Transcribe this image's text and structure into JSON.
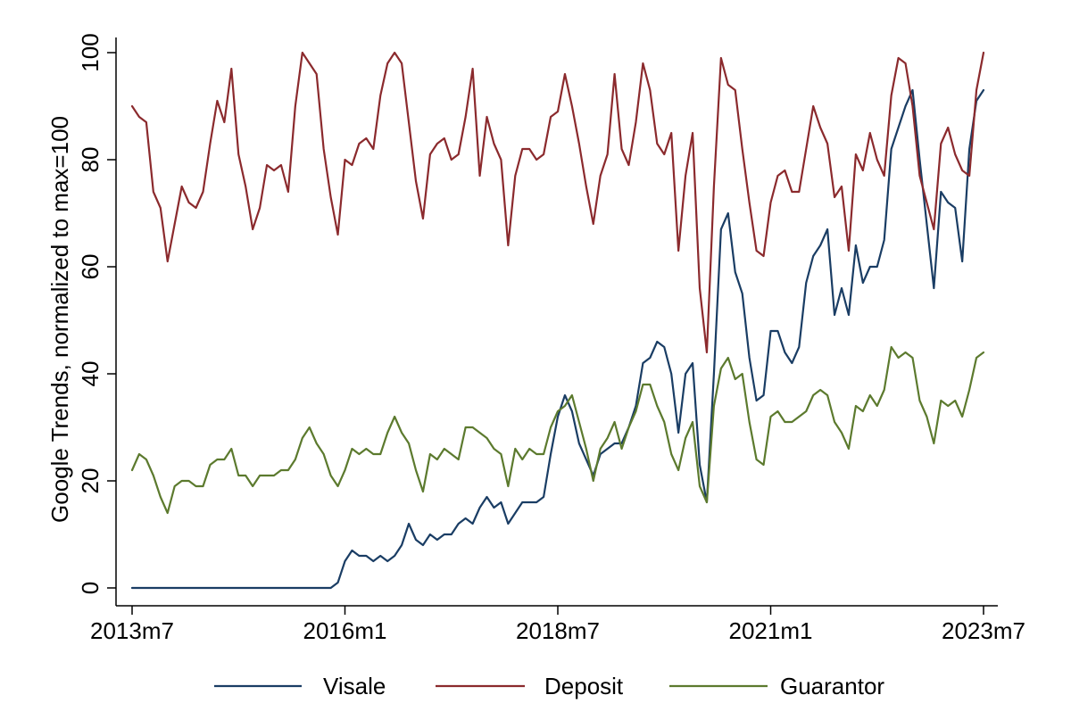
{
  "chart_data": {
    "type": "line",
    "ylabel": "Google Trends, normalized to max=100",
    "xlabel": "",
    "x_ticks": [
      "2013m7",
      "2016m1",
      "2018m7",
      "2021m1",
      "2023m7"
    ],
    "y_ticks": [
      "0",
      "20",
      "40",
      "60",
      "80",
      "100"
    ],
    "x_range": [
      "2013m7",
      "2023m7"
    ],
    "ylim": [
      0,
      100
    ],
    "grid": false,
    "legend_position": "bottom",
    "x": [
      "2013m7",
      "2013m8",
      "2013m9",
      "2013m10",
      "2013m11",
      "2013m12",
      "2014m1",
      "2014m2",
      "2014m3",
      "2014m4",
      "2014m5",
      "2014m6",
      "2014m7",
      "2014m8",
      "2014m9",
      "2014m10",
      "2014m11",
      "2014m12",
      "2015m1",
      "2015m2",
      "2015m3",
      "2015m4",
      "2015m5",
      "2015m6",
      "2015m7",
      "2015m8",
      "2015m9",
      "2015m10",
      "2015m11",
      "2015m12",
      "2016m1",
      "2016m2",
      "2016m3",
      "2016m4",
      "2016m5",
      "2016m6",
      "2016m7",
      "2016m8",
      "2016m9",
      "2016m10",
      "2016m11",
      "2016m12",
      "2017m1",
      "2017m2",
      "2017m3",
      "2017m4",
      "2017m5",
      "2017m6",
      "2017m7",
      "2017m8",
      "2017m9",
      "2017m10",
      "2017m11",
      "2017m12",
      "2018m1",
      "2018m2",
      "2018m3",
      "2018m4",
      "2018m5",
      "2018m6",
      "2018m7",
      "2018m8",
      "2018m9",
      "2018m10",
      "2018m11",
      "2018m12",
      "2019m1",
      "2019m2",
      "2019m3",
      "2019m4",
      "2019m5",
      "2019m6",
      "2019m7",
      "2019m8",
      "2019m9",
      "2019m10",
      "2019m11",
      "2019m12",
      "2020m1",
      "2020m2",
      "2020m3",
      "2020m4",
      "2020m5",
      "2020m6",
      "2020m7",
      "2020m8",
      "2020m9",
      "2020m10",
      "2020m11",
      "2020m12",
      "2021m1",
      "2021m2",
      "2021m3",
      "2021m4",
      "2021m5",
      "2021m6",
      "2021m7",
      "2021m8",
      "2021m9",
      "2021m10",
      "2021m11",
      "2021m12",
      "2022m1",
      "2022m2",
      "2022m3",
      "2022m4",
      "2022m5",
      "2022m6",
      "2022m7",
      "2022m8",
      "2022m9",
      "2022m10",
      "2022m11",
      "2022m12",
      "2023m1",
      "2023m2",
      "2023m3",
      "2023m4",
      "2023m5",
      "2023m6",
      "2023m7"
    ],
    "series": [
      {
        "name": "Visale",
        "color": "#1a3d64",
        "values": [
          0,
          0,
          0,
          0,
          0,
          0,
          0,
          0,
          0,
          0,
          0,
          0,
          0,
          0,
          0,
          0,
          0,
          0,
          0,
          0,
          0,
          0,
          0,
          0,
          0,
          0,
          0,
          0,
          0,
          1,
          5,
          7,
          6,
          6,
          5,
          6,
          5,
          6,
          8,
          12,
          9,
          8,
          10,
          9,
          10,
          10,
          12,
          13,
          12,
          15,
          17,
          15,
          16,
          12,
          14,
          16,
          16,
          16,
          17,
          25,
          32,
          36,
          33,
          27,
          24,
          21,
          25,
          26,
          27,
          27,
          30,
          34,
          42,
          43,
          46,
          45,
          40,
          29,
          40,
          42,
          23,
          16,
          40,
          67,
          70,
          59,
          55,
          43,
          35,
          36,
          48,
          48,
          44,
          42,
          45,
          57,
          62,
          64,
          67,
          51,
          56,
          51,
          64,
          57,
          60,
          60,
          65,
          82,
          86,
          90,
          93,
          80,
          68,
          56,
          74,
          72,
          71,
          61,
          82,
          91,
          93
        ]
      },
      {
        "name": "Deposit",
        "color": "#8b2a2d",
        "values": [
          90,
          88,
          87,
          74,
          71,
          61,
          68,
          75,
          72,
          71,
          74,
          83,
          91,
          87,
          97,
          81,
          75,
          67,
          71,
          79,
          78,
          79,
          74,
          90,
          100,
          98,
          96,
          82,
          73,
          66,
          80,
          79,
          83,
          84,
          82,
          92,
          98,
          100,
          98,
          87,
          76,
          69,
          81,
          83,
          84,
          80,
          81,
          88,
          97,
          77,
          88,
          83,
          80,
          64,
          77,
          82,
          82,
          80,
          81,
          88,
          89,
          96,
          90,
          83,
          75,
          68,
          77,
          81,
          96,
          82,
          79,
          87,
          98,
          93,
          83,
          81,
          85,
          63,
          77,
          85,
          56,
          44,
          75,
          99,
          94,
          93,
          82,
          72,
          63,
          62,
          72,
          77,
          78,
          74,
          74,
          82,
          90,
          86,
          83,
          73,
          75,
          63,
          81,
          78,
          85,
          80,
          77,
          92,
          99,
          98,
          90,
          77,
          72,
          67,
          83,
          86,
          81,
          78,
          77,
          93,
          100
        ]
      },
      {
        "name": "Guarantor",
        "color": "#5c7a2e",
        "values": [
          22,
          25,
          24,
          21,
          17,
          14,
          19,
          20,
          20,
          19,
          19,
          23,
          24,
          24,
          26,
          21,
          21,
          19,
          21,
          21,
          21,
          22,
          22,
          24,
          28,
          30,
          27,
          25,
          21,
          19,
          22,
          26,
          25,
          26,
          25,
          25,
          29,
          32,
          29,
          27,
          22,
          18,
          25,
          24,
          26,
          25,
          24,
          30,
          30,
          29,
          28,
          26,
          25,
          19,
          26,
          24,
          26,
          25,
          25,
          30,
          33,
          34,
          36,
          31,
          26,
          20,
          26,
          28,
          31,
          26,
          30,
          33,
          38,
          38,
          34,
          31,
          25,
          22,
          28,
          31,
          19,
          16,
          34,
          41,
          43,
          39,
          40,
          31,
          24,
          23,
          32,
          33,
          31,
          31,
          32,
          33,
          36,
          37,
          36,
          31,
          29,
          26,
          34,
          33,
          36,
          34,
          37,
          45,
          43,
          44,
          43,
          35,
          32,
          27,
          35,
          34,
          35,
          32,
          37,
          43,
          44
        ]
      }
    ]
  }
}
